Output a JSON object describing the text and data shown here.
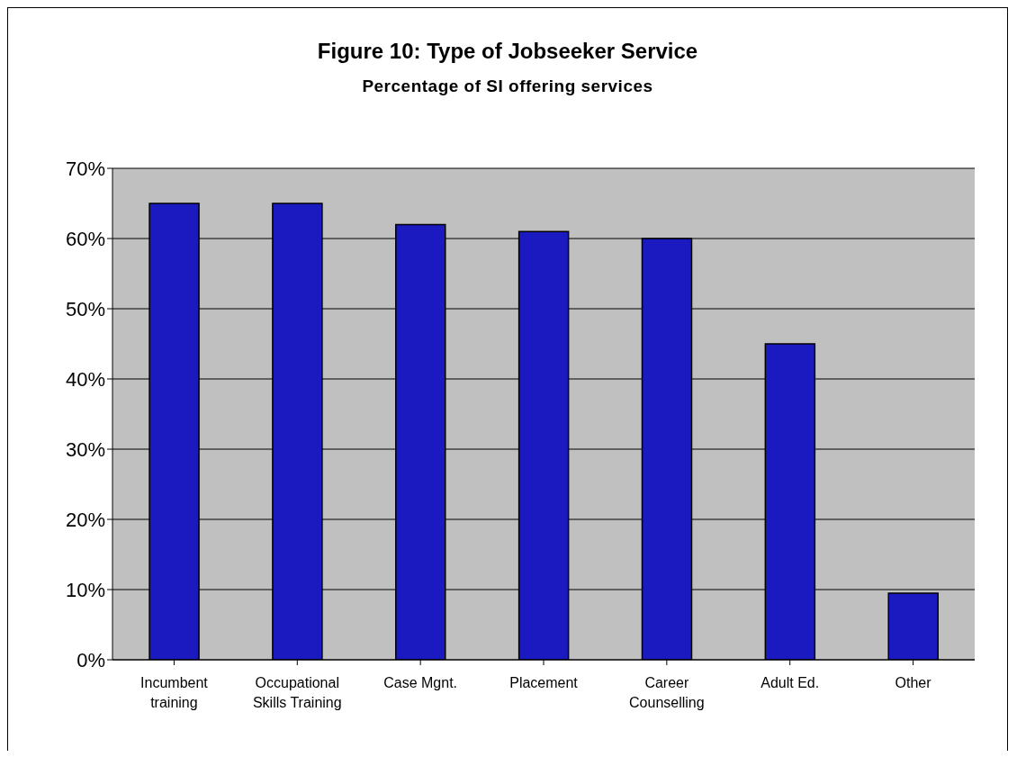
{
  "chart_data": {
    "type": "bar",
    "title": "Figure 10: Type of Jobseeker Service",
    "subtitle": "Percentage of SI offering services",
    "categories": [
      "Incumbent training",
      "Occupational Skills Training",
      "Case Mgnt.",
      "Placement",
      "Career Counselling",
      "Adult Ed.",
      "Other"
    ],
    "values": [
      65,
      65,
      62,
      61,
      60,
      45,
      9.5
    ],
    "color": "#1a1ac0",
    "ylim": [
      0,
      70
    ],
    "yticks": [
      {
        "value": 0,
        "label": "0%"
      },
      {
        "value": 10,
        "label": "10%"
      },
      {
        "value": 20,
        "label": "20%"
      },
      {
        "value": 30,
        "label": "30%"
      },
      {
        "value": 40,
        "label": "40%"
      },
      {
        "value": 50,
        "label": "50%"
      },
      {
        "value": 60,
        "label": "60%"
      },
      {
        "value": 70,
        "label": "70%"
      }
    ],
    "grid": "y"
  }
}
